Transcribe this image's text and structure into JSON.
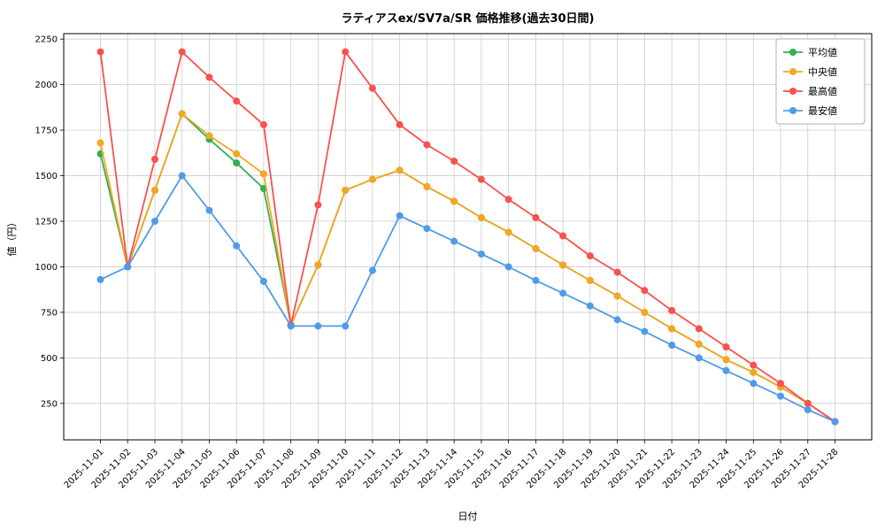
{
  "figure": {
    "background": "#ffffff",
    "grid_color": "#cccccc",
    "axes_color": "#000000",
    "legend_border_color": "#b0b0b0"
  },
  "chart_data": {
    "type": "line",
    "title": "ラティアスex/SV7a/SR 価格推移(過去30日間)",
    "xlabel": "日付",
    "ylabel": "値（円）",
    "grid": true,
    "legend_position": "upper right",
    "ylim": [
      50,
      2280
    ],
    "yticks": [
      250,
      500,
      750,
      1000,
      1250,
      1500,
      1750,
      2000,
      2250
    ],
    "x": [
      "2025-11-01",
      "2025-11-02",
      "2025-11-03",
      "2025-11-04",
      "2025-11-05",
      "2025-11-06",
      "2025-11-07",
      "2025-11-08",
      "2025-11-09",
      "2025-11-10",
      "2025-11-11",
      "2025-11-12",
      "2025-11-13",
      "2025-11-14",
      "2025-11-15",
      "2025-11-16",
      "2025-11-17",
      "2025-11-18",
      "2025-11-19",
      "2025-11-20",
      "2025-11-21",
      "2025-11-22",
      "2025-11-23",
      "2025-11-24",
      "2025-11-25",
      "2025-11-26",
      "2025-11-27",
      "2025-11-28"
    ],
    "series": [
      {
        "key": "average",
        "name": "平均値",
        "color": "#30b050",
        "values": [
          1620,
          1000,
          1420,
          1840,
          1700,
          1570,
          1430,
          680,
          1010,
          1420,
          1480,
          1530,
          1440,
          1360,
          1270,
          1190,
          1100,
          1010,
          925,
          840,
          750,
          660,
          575,
          490,
          420,
          340,
          250,
          150
        ]
      },
      {
        "key": "median",
        "name": "中央値",
        "color": "#f5a623",
        "values": [
          1680,
          1000,
          1420,
          1840,
          1720,
          1620,
          1510,
          680,
          1010,
          1420,
          1480,
          1530,
          1440,
          1360,
          1270,
          1190,
          1100,
          1010,
          925,
          840,
          750,
          660,
          575,
          490,
          420,
          340,
          250,
          150
        ]
      },
      {
        "key": "max",
        "name": "最高値",
        "color": "#f8514e",
        "values": [
          2180,
          1000,
          1590,
          2180,
          2040,
          1910,
          1780,
          680,
          1340,
          2180,
          1980,
          1780,
          1670,
          1580,
          1480,
          1370,
          1270,
          1170,
          1060,
          970,
          870,
          760,
          660,
          560,
          460,
          360,
          250,
          150
        ]
      },
      {
        "key": "min",
        "name": "最安値",
        "color": "#4f9be8",
        "values": [
          930,
          1000,
          1250,
          1500,
          1310,
          1115,
          920,
          675,
          675,
          675,
          980,
          1280,
          1210,
          1140,
          1070,
          1000,
          925,
          855,
          785,
          710,
          645,
          570,
          500,
          430,
          360,
          290,
          215,
          150
        ]
      }
    ]
  }
}
